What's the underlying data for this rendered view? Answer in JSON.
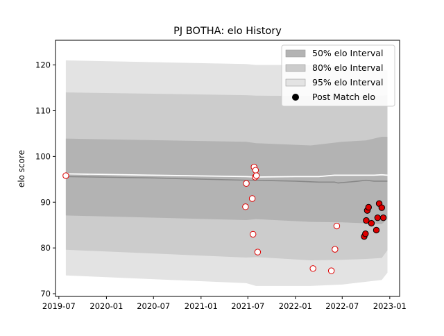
{
  "chart_data": {
    "type": "line",
    "title": "PJ BOTHA: elo History",
    "xlabel": "",
    "ylabel": "elo score",
    "xlim": [
      "2019-06-18",
      "2023-02-08"
    ],
    "ylim": [
      69.4,
      125.4
    ],
    "x_ticks": [
      "2019-07-01",
      "2020-01-01",
      "2020-07-01",
      "2021-01-01",
      "2021-07-01",
      "2022-01-01",
      "2022-07-01",
      "2023-01-01"
    ],
    "x_tick_labels": [
      "2019-07",
      "2020-01",
      "2020-07",
      "2021-01",
      "2021-07",
      "2022-01",
      "2022-07",
      "2023-01"
    ],
    "y_ticks": [
      70,
      80,
      90,
      100,
      110,
      120
    ],
    "y_tick_labels": [
      "70",
      "80",
      "90",
      "100",
      "110",
      "120"
    ],
    "grid": false,
    "legend_position": "top-right",
    "legend": [
      {
        "label": "50% elo Interval",
        "kind": "patch",
        "color": "#b3b3b3"
      },
      {
        "label": "80% elo Interval",
        "kind": "patch",
        "color": "#cccccc"
      },
      {
        "label": "95% elo Interval",
        "kind": "patch",
        "color": "#e3e3e3"
      },
      {
        "label": "Post Match elo",
        "kind": "marker",
        "color": "#000000"
      }
    ],
    "bands": [
      {
        "name": "95% elo Interval",
        "color": "#e3e3e3",
        "x": [
          "2019-07-28",
          "2021-06-25",
          "2021-08-01",
          "2022-03-01",
          "2022-07-01",
          "2022-10-01",
          "2022-12-01",
          "2022-12-23"
        ],
        "upper": [
          121.0,
          120.2,
          120.0,
          120.0,
          119.8,
          119.7,
          119.0,
          118.8
        ],
        "lower": [
          74.0,
          72.3,
          71.7,
          71.7,
          72.0,
          72.6,
          73.0,
          74.6
        ]
      },
      {
        "name": "80% elo Interval",
        "color": "#cccccc",
        "x": [
          "2019-07-28",
          "2021-06-25",
          "2021-08-01",
          "2022-03-01",
          "2022-07-01",
          "2022-10-01",
          "2022-12-01",
          "2022-12-23"
        ],
        "upper": [
          114.0,
          113.4,
          113.3,
          113.2,
          113.3,
          113.2,
          113.3,
          113.4
        ],
        "lower": [
          79.6,
          77.9,
          78.0,
          77.3,
          77.4,
          77.6,
          77.8,
          79.5
        ]
      },
      {
        "name": "50% elo Interval",
        "color": "#b3b3b3",
        "x": [
          "2019-07-28",
          "2021-06-25",
          "2021-08-01",
          "2022-03-01",
          "2022-07-01",
          "2022-10-01",
          "2022-12-01",
          "2022-12-23"
        ],
        "upper": [
          103.9,
          103.2,
          102.9,
          102.4,
          103.2,
          103.5,
          104.3,
          104.3
        ],
        "lower": [
          87.1,
          86.1,
          86.3,
          85.7,
          85.6,
          85.4,
          85.2,
          86.3
        ]
      }
    ],
    "mean_line": {
      "color": "#888888",
      "x": [
        "2019-07-28",
        "2020-07-01",
        "2021-06-25",
        "2021-08-01",
        "2022-01-01",
        "2022-04-01",
        "2022-06-01",
        "2022-06-15",
        "2022-09-01",
        "2022-10-01",
        "2022-11-01",
        "2022-12-01",
        "2022-12-23"
      ],
      "y": [
        95.6,
        95.3,
        94.8,
        94.8,
        94.6,
        94.4,
        94.4,
        94.2,
        94.6,
        94.8,
        94.6,
        94.6,
        94.6
      ]
    },
    "white_line": {
      "color": "#ffffff",
      "x": [
        "2019-07-28",
        "2020-07-01",
        "2021-06-25",
        "2021-08-01",
        "2022-01-01",
        "2022-04-01",
        "2022-06-01",
        "2022-09-01",
        "2022-11-01",
        "2022-12-01",
        "2022-12-23"
      ],
      "y": [
        96.2,
        95.9,
        95.6,
        95.5,
        95.6,
        95.6,
        95.9,
        95.9,
        95.9,
        96.0,
        95.9
      ]
    },
    "points_hollow": {
      "name": "Post Match elo",
      "x": [
        "2019-07-28",
        "2021-06-22",
        "2021-06-25",
        "2021-07-18",
        "2021-07-21",
        "2021-07-25",
        "2021-07-29",
        "2021-07-31",
        "2021-08-03",
        "2021-08-08",
        "2022-03-10",
        "2022-05-20",
        "2022-06-03",
        "2022-06-10"
      ],
      "y": [
        95.8,
        89.0,
        94.1,
        90.8,
        83.0,
        97.7,
        95.5,
        97.0,
        95.8,
        79.1,
        75.5,
        75.0,
        79.7,
        84.8
      ]
    },
    "points_filled": {
      "x": [
        "2022-09-24",
        "2022-09-29",
        "2022-10-02",
        "2022-10-06",
        "2022-10-11",
        "2022-10-22",
        "2022-11-10",
        "2022-11-15",
        "2022-11-21",
        "2022-12-01",
        "2022-12-07"
      ],
      "y": [
        82.5,
        83.1,
        86.0,
        88.2,
        88.9,
        85.4,
        83.9,
        86.6,
        89.7,
        88.8,
        86.6
      ]
    }
  }
}
